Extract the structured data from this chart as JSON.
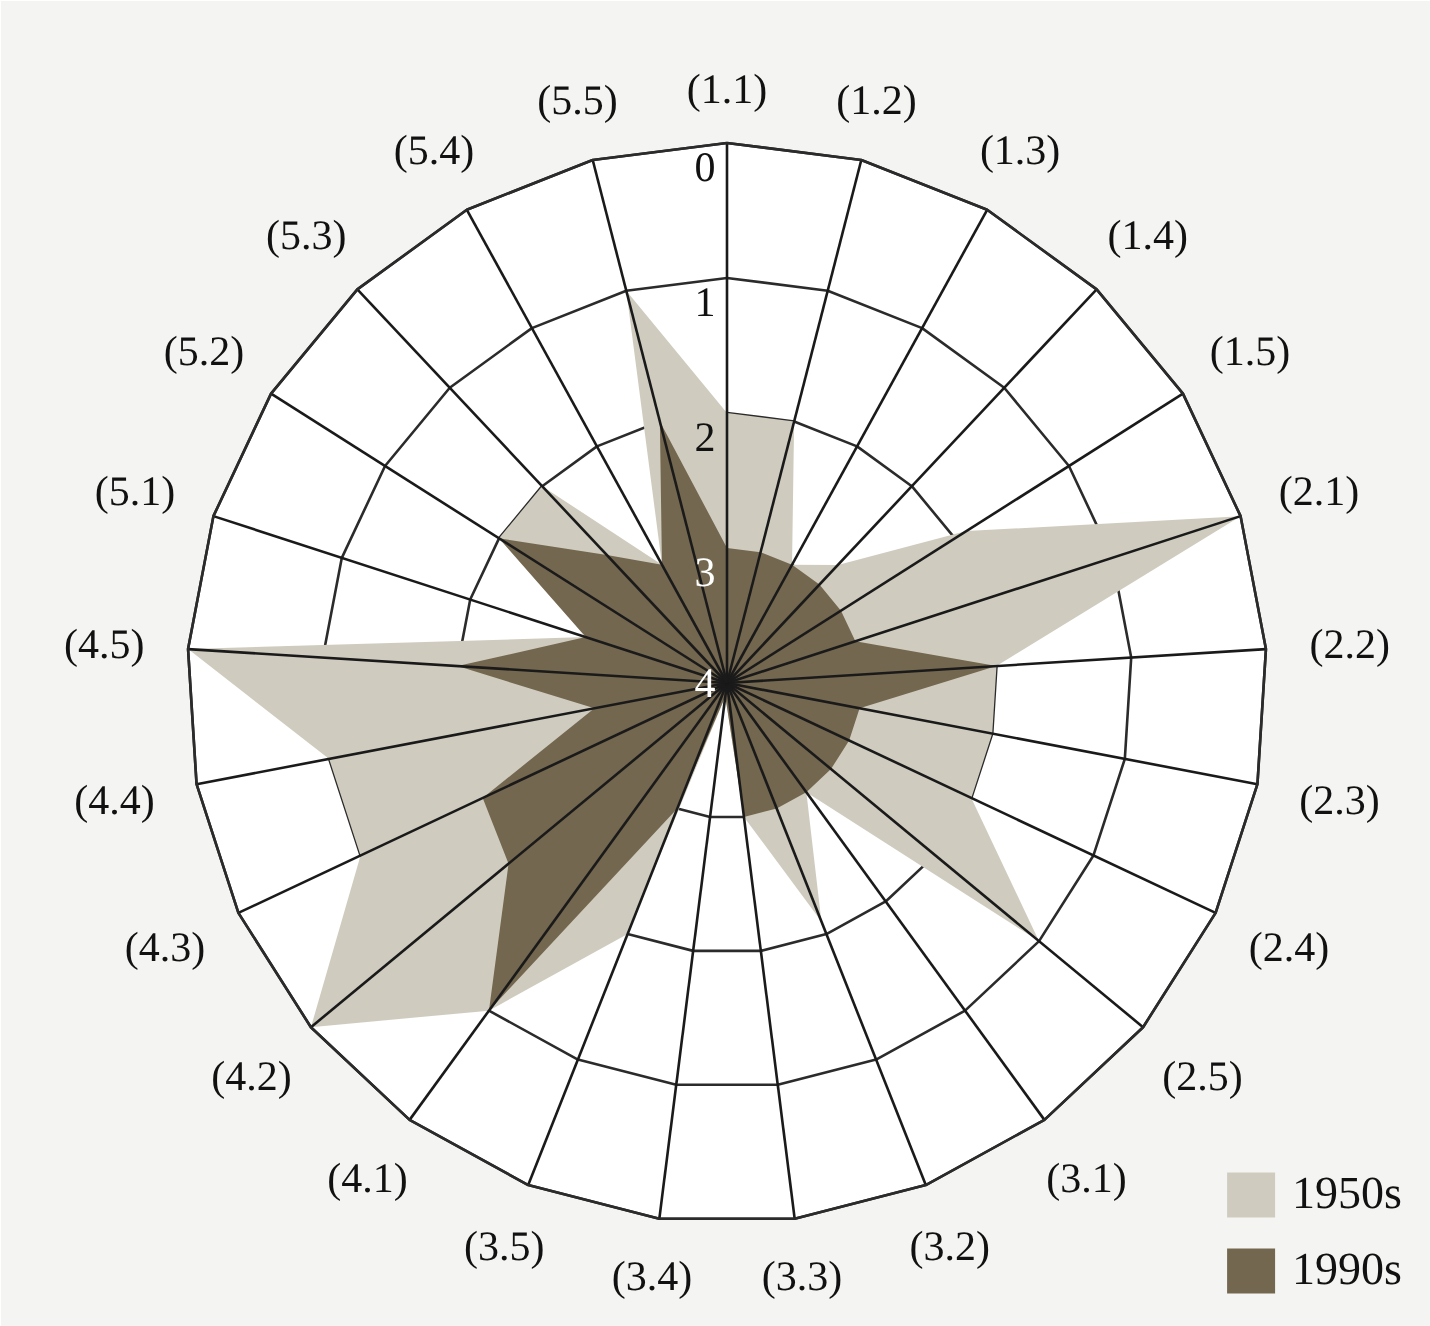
{
  "chart_data": {
    "type": "radar",
    "categories": [
      "(1.1)",
      "(1.2)",
      "(1.3)",
      "(1.4)",
      "(1.5)",
      "(2.1)",
      "(2.2)",
      "(2.3)",
      "(2.4)",
      "(2.5)",
      "(3.1)",
      "(3.2)",
      "(3.3)",
      "(3.4)",
      "(3.5)",
      "(4.1)",
      "(4.2)",
      "(4.3)",
      "(4.4)",
      "(4.5)",
      "(5.1)",
      "(5.2)",
      "(5.3)",
      "(5.4)",
      "(5.5)"
    ],
    "series": [
      {
        "name": "1950s",
        "color": "#cfccbf",
        "values": [
          2.0,
          2.0,
          3.0,
          2.8,
          1.9,
          0.0,
          2.0,
          2.0,
          2.0,
          1.0,
          3.0,
          2.1,
          3.0,
          3.9,
          2.0,
          1.0,
          0.0,
          1.0,
          1.0,
          0.0,
          2.9,
          2.0,
          2.0,
          3.0,
          1.0
        ]
      },
      {
        "name": "1990s",
        "color": "#74674f",
        "values": [
          3.0,
          3.0,
          3.0,
          3.0,
          3.0,
          3.0,
          2.0,
          3.0,
          3.0,
          3.0,
          3.0,
          3.0,
          3.0,
          3.9,
          3.0,
          1.0,
          1.9,
          2.0,
          3.0,
          2.0,
          2.9,
          2.0,
          2.7,
          3.0,
          2.0
        ]
      }
    ],
    "ylim": [
      4,
      0
    ],
    "yticks": [
      0,
      1,
      2,
      3,
      4
    ],
    "grid": true,
    "legend": "bottom right"
  }
}
